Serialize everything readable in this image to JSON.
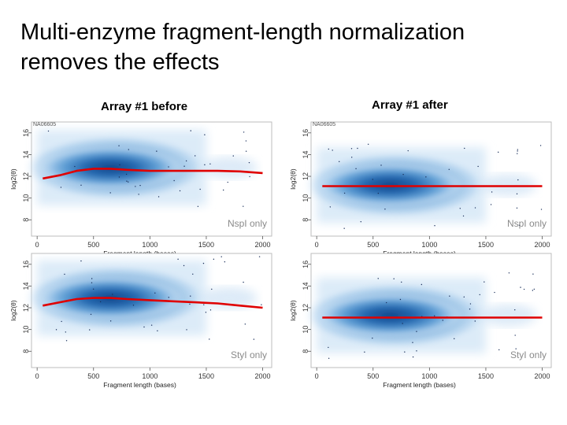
{
  "slide": {
    "title_line1": "Multi-enzyme fragment-length normalization",
    "title_line2": "removes the effects"
  },
  "columns": {
    "before": "Array #1 before",
    "after": "Array #1 after"
  },
  "colors": {
    "fit": "#e00000",
    "density_dark": "#0b3f85",
    "density_light": "#d4e7f7"
  },
  "chart_data": [
    {
      "type": "scatter",
      "panel": "before-nspi",
      "sample_label": "NA06605",
      "enzyme_label": "NspI only",
      "xlabel": "Fragment length (bases)",
      "ylabel": "log2(θ)",
      "xlim": [
        -50,
        2080
      ],
      "ylim": [
        6.5,
        17
      ],
      "xticks": [
        "0",
        "500",
        "1000",
        "1500",
        "2000"
      ],
      "yticks": [
        "8",
        "10",
        "12",
        "14",
        "16"
      ],
      "density_center_y": 12.8,
      "fit_x": [
        50,
        200,
        350,
        500,
        650,
        800,
        1000,
        1200,
        1400,
        1600,
        1800,
        2000
      ],
      "fit_y": [
        11.8,
        12.1,
        12.5,
        12.7,
        12.7,
        12.6,
        12.5,
        12.5,
        12.5,
        12.5,
        12.45,
        12.3
      ]
    },
    {
      "type": "scatter",
      "panel": "after-nspi",
      "sample_label": "NA06605",
      "enzyme_label": "NspI only",
      "xlabel": "Fragment length (bases)",
      "ylabel": "log2(θ)",
      "xlim": [
        -50,
        2080
      ],
      "ylim": [
        6.5,
        17
      ],
      "xticks": [
        "0",
        "500",
        "1000",
        "1500",
        "2000"
      ],
      "yticks": [
        "8",
        "10",
        "12",
        "14",
        "16"
      ],
      "density_center_y": 11.2,
      "fit_x": [
        50,
        2000
      ],
      "fit_y": [
        11.1,
        11.1
      ]
    },
    {
      "type": "scatter",
      "panel": "before-styi",
      "sample_label": "",
      "enzyme_label": "StyI only",
      "xlabel": "Fragment length (bases)",
      "ylabel": "log2(θ)",
      "xlim": [
        -50,
        2080
      ],
      "ylim": [
        6.5,
        17
      ],
      "xticks": [
        "0",
        "500",
        "1000",
        "1500",
        "2000"
      ],
      "yticks": [
        "8",
        "10",
        "12",
        "14",
        "16"
      ],
      "density_center_y": 12.9,
      "fit_x": [
        50,
        200,
        350,
        500,
        650,
        800,
        1000,
        1200,
        1400,
        1600,
        1800,
        2000
      ],
      "fit_y": [
        12.2,
        12.5,
        12.8,
        12.9,
        12.9,
        12.8,
        12.7,
        12.6,
        12.5,
        12.4,
        12.2,
        12.0
      ]
    },
    {
      "type": "scatter",
      "panel": "after-styi",
      "sample_label": "",
      "enzyme_label": "StyI only",
      "xlabel": "Fragment length (bases)",
      "ylabel": "log2(θ)",
      "xlim": [
        -50,
        2080
      ],
      "ylim": [
        6.5,
        17
      ],
      "xticks": [
        "0",
        "500",
        "1000",
        "1500",
        "2000"
      ],
      "yticks": [
        "8",
        "10",
        "12",
        "14",
        "16"
      ],
      "density_center_y": 11.3,
      "fit_x": [
        50,
        2000
      ],
      "fit_y": [
        11.1,
        11.1
      ]
    }
  ]
}
